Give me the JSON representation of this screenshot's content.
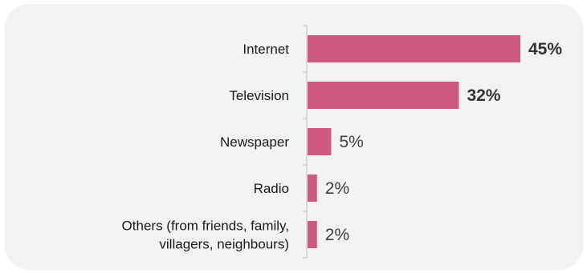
{
  "chart_data": {
    "type": "bar",
    "orientation": "horizontal",
    "categories": [
      [
        "Internet"
      ],
      [
        "Television"
      ],
      [
        "Newspaper"
      ],
      [
        "Radio"
      ],
      [
        "Others (from friends, family,",
        "villagers, neighbours)"
      ]
    ],
    "values": [
      45,
      32,
      5,
      2,
      2
    ],
    "value_labels": [
      "45%",
      "32%",
      "5%",
      "2%",
      "2%"
    ],
    "bold_values": [
      true,
      true,
      false,
      false,
      false
    ],
    "unit": "%",
    "xlim": [
      0,
      45
    ],
    "grid": false,
    "legend": "none",
    "title": "",
    "xlabel": "",
    "ylabel": "",
    "colors": {
      "bar": "#cc5a80",
      "panel": "#f2f2f2",
      "axis": "#bfbfbf"
    }
  }
}
